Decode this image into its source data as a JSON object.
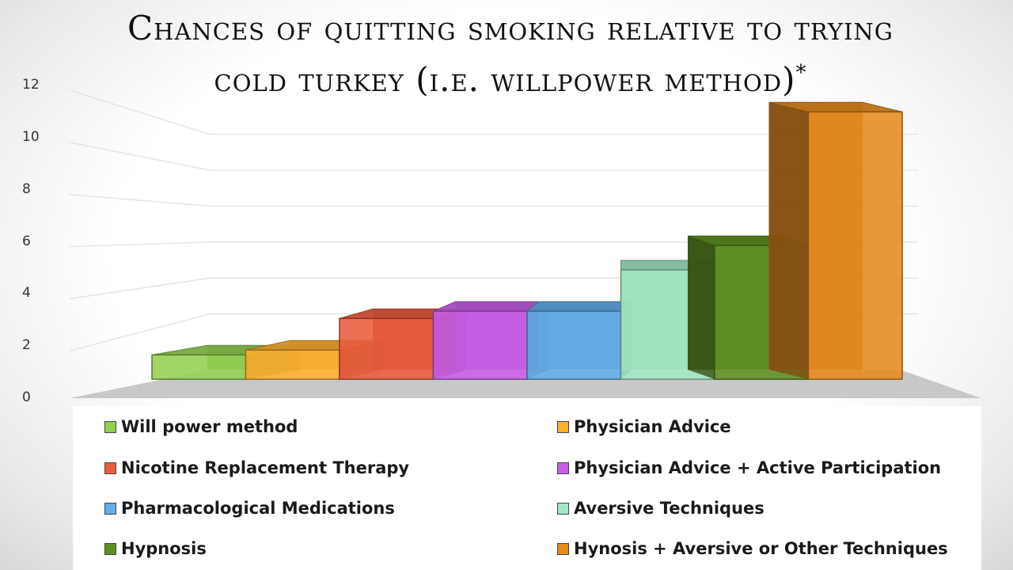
{
  "title": {
    "main": "Chances of quitting smoking relative to trying cold turkey (i.e. willpower method)",
    "asterisk": "*"
  },
  "y_axis": {
    "ticks": [
      "0",
      "2",
      "4",
      "6",
      "8",
      "10",
      "12"
    ]
  },
  "legend": {
    "items": [
      {
        "label": "Will power method",
        "color": "#92d050"
      },
      {
        "label": "Physician Advice",
        "color": "#ffb030"
      },
      {
        "label": "Nicotine Replacement Therapy",
        "color": "#ea5b3c"
      },
      {
        "label": "Physician Advice + Active Participation",
        "color": "#c85ee8"
      },
      {
        "label": "Pharmacological Medications",
        "color": "#63aee8"
      },
      {
        "label": "Aversive Techniques",
        "color": "#a3e8c4"
      },
      {
        "label": "Hypnosis",
        "color": "#5e8f22"
      },
      {
        "label": "Hynosis + Aversive or Other Techniques",
        "color": "#e58a1c"
      }
    ]
  },
  "chart_data": {
    "type": "bar",
    "title": "Chances of quitting smoking relative to trying cold turkey (i.e. willpower method)*",
    "xlabel": "",
    "ylabel": "",
    "ylim": [
      0,
      12
    ],
    "yticks": [
      0,
      2,
      4,
      6,
      8,
      10,
      12
    ],
    "grid": true,
    "legend_position": "bottom",
    "style": "3d-bar",
    "categories": [
      "Will power method",
      "Physician Advice",
      "Nicotine Replacement Therapy",
      "Physician Advice + Active Participation",
      "Pharmacological Medications",
      "Aversive Techniques",
      "Hypnosis",
      "Hynosis + Aversive or Other Techniques"
    ],
    "values": [
      1.0,
      1.2,
      2.5,
      2.8,
      2.8,
      4.5,
      5.5,
      11.0
    ],
    "colors": [
      "#92d050",
      "#ffb030",
      "#ea5b3c",
      "#c85ee8",
      "#63aee8",
      "#a3e8c4",
      "#5e8f22",
      "#e58a1c"
    ]
  }
}
